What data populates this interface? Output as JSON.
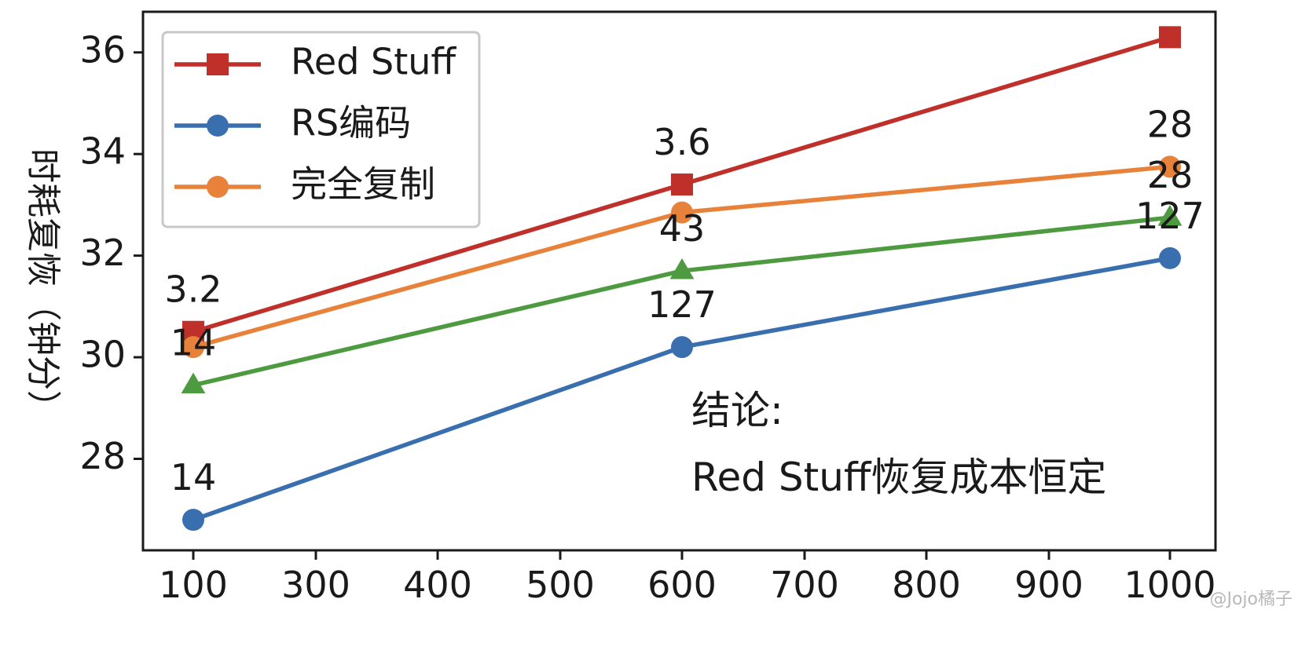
{
  "chart_data": {
    "type": "line",
    "title": "",
    "xlabel": "",
    "ylabel": "时耗复恢（钟分）",
    "x": [
      100,
      600,
      1000
    ],
    "xticks": [
      "100",
      "300",
      "400",
      "500",
      "600",
      "700",
      "800",
      "900",
      "1000"
    ],
    "yticks": [
      "28",
      "30",
      "32",
      "34",
      "36"
    ],
    "ylim": [
      26.2,
      36.8
    ],
    "grid": false,
    "legend_position": "top-left",
    "series": [
      {
        "name": "Red Stuff",
        "color": "#c0302b",
        "marker": "square",
        "values": [
          30.5,
          33.4,
          36.3
        ],
        "data_labels": [
          "3.2",
          "3.6",
          ""
        ]
      },
      {
        "name": "RS编码",
        "color": "#3a6faf",
        "marker": "circle",
        "values": [
          26.8,
          30.2,
          31.95
        ],
        "data_labels": [
          "14",
          "127",
          "127"
        ]
      },
      {
        "name": "完全复制",
        "color": "#e8823a",
        "marker": "circle",
        "values": [
          30.2,
          32.85,
          33.75
        ],
        "data_labels": [
          "",
          "",
          "28"
        ]
      },
      {
        "name": "",
        "color": "#4e9a40",
        "marker": "triangle",
        "values": [
          29.45,
          31.7,
          32.75
        ],
        "data_labels": [
          "14",
          "43",
          "28"
        ]
      }
    ],
    "annotations": [
      "结论:",
      "Red Stuff恢复成本恒定"
    ],
    "watermark": "@Jojo橘子"
  }
}
